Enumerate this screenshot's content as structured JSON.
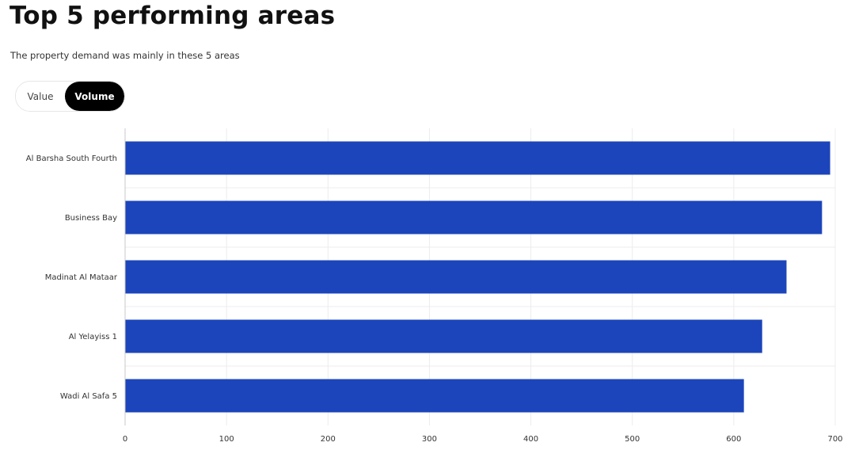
{
  "header": {
    "title": "Top 5 performing areas",
    "subtitle": "The property demand was mainly in these 5 areas"
  },
  "toggle": {
    "options": [
      "Value",
      "Volume"
    ],
    "selected": "Volume"
  },
  "colors": {
    "bar": "#1c45bb",
    "grid": "#ececec",
    "axis": "#c8c8c8",
    "toggle_active_bg": "#000000",
    "toggle_active_text": "#ffffff"
  },
  "chart_data": {
    "type": "bar",
    "orientation": "horizontal",
    "categories": [
      "Al Barsha South Fourth",
      "Business Bay",
      "Madinat Al Mataar",
      "Al Yelayiss 1",
      "Wadi Al Safa 5"
    ],
    "values": [
      695,
      687,
      652,
      628,
      610
    ],
    "xlim": [
      0,
      700
    ],
    "xticks": [
      0,
      100,
      200,
      300,
      400,
      500,
      600,
      700
    ],
    "grid": true,
    "xlabel": "",
    "ylabel": ""
  }
}
